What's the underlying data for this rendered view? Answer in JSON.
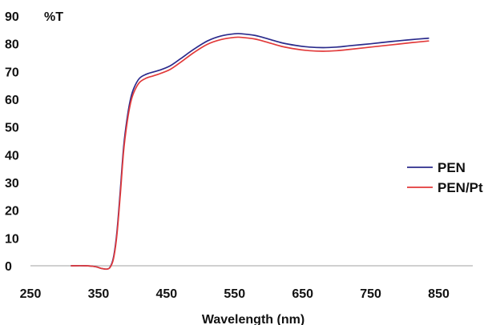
{
  "chart_data": {
    "type": "line",
    "title": "",
    "xlabel": "Wavelength (nm)",
    "ylabel": "%T",
    "xlim": [
      250,
      900
    ],
    "ylim": [
      0,
      90
    ],
    "x_ticks": [
      250,
      350,
      450,
      550,
      650,
      750,
      850
    ],
    "y_ticks": [
      0,
      10,
      20,
      30,
      40,
      50,
      60,
      70,
      80,
      90
    ],
    "grid": false,
    "legend_position": "right",
    "series": [
      {
        "name": "PEN",
        "color": "#2b2b8c",
        "points": [
          [
            310,
            0
          ],
          [
            330,
            0
          ],
          [
            345,
            -0.3
          ],
          [
            355,
            -1.0
          ],
          [
            362,
            -1.2
          ],
          [
            367,
            -0.5
          ],
          [
            372,
            3
          ],
          [
            377,
            12
          ],
          [
            382,
            27
          ],
          [
            387,
            43
          ],
          [
            392,
            53
          ],
          [
            397,
            60
          ],
          [
            402,
            64
          ],
          [
            410,
            67.5
          ],
          [
            420,
            69
          ],
          [
            430,
            69.8
          ],
          [
            440,
            70.5
          ],
          [
            455,
            72
          ],
          [
            470,
            74.5
          ],
          [
            490,
            78
          ],
          [
            510,
            81
          ],
          [
            530,
            82.8
          ],
          [
            550,
            83.6
          ],
          [
            560,
            83.6
          ],
          [
            580,
            83
          ],
          [
            600,
            81.7
          ],
          [
            620,
            80.3
          ],
          [
            640,
            79.4
          ],
          [
            660,
            78.8
          ],
          [
            680,
            78.6
          ],
          [
            700,
            78.8
          ],
          [
            720,
            79.3
          ],
          [
            750,
            80
          ],
          [
            780,
            80.8
          ],
          [
            810,
            81.5
          ],
          [
            835,
            82
          ]
        ]
      },
      {
        "name": "PEN/Pt",
        "color": "#e23a3a",
        "points": [
          [
            310,
            0
          ],
          [
            330,
            0
          ],
          [
            345,
            -0.3
          ],
          [
            355,
            -1.0
          ],
          [
            362,
            -1.2
          ],
          [
            367,
            -0.6
          ],
          [
            372,
            2.5
          ],
          [
            377,
            11
          ],
          [
            382,
            25.5
          ],
          [
            387,
            41.5
          ],
          [
            392,
            51.5
          ],
          [
            397,
            58.5
          ],
          [
            402,
            62.5
          ],
          [
            410,
            66
          ],
          [
            420,
            67.6
          ],
          [
            430,
            68.4
          ],
          [
            440,
            69.2
          ],
          [
            455,
            70.7
          ],
          [
            470,
            73.2
          ],
          [
            490,
            76.8
          ],
          [
            510,
            79.8
          ],
          [
            530,
            81.5
          ],
          [
            550,
            82.3
          ],
          [
            560,
            82.3
          ],
          [
            580,
            81.7
          ],
          [
            600,
            80.4
          ],
          [
            620,
            79
          ],
          [
            640,
            78.1
          ],
          [
            660,
            77.5
          ],
          [
            680,
            77.3
          ],
          [
            700,
            77.5
          ],
          [
            720,
            78
          ],
          [
            750,
            78.8
          ],
          [
            780,
            79.6
          ],
          [
            810,
            80.4
          ],
          [
            835,
            81
          ]
        ]
      }
    ]
  }
}
